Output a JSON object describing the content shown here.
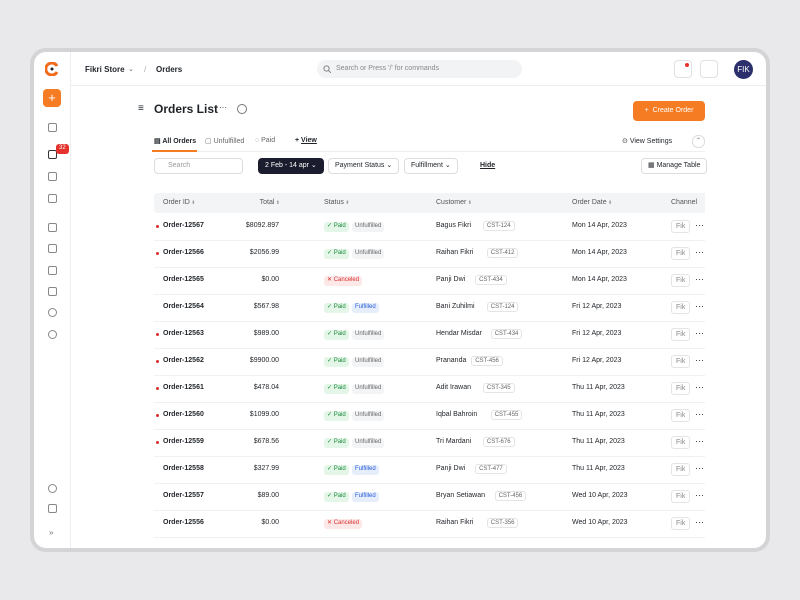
{
  "header": {
    "store": "Fikri Store",
    "breadcrumb": "Orders",
    "search_placeholder": "Search or Press '/' for commands",
    "avatar": "FIK"
  },
  "sidebar": {
    "badge": "32"
  },
  "page": {
    "title": "Orders List",
    "create_button": "Create Order"
  },
  "tabs": {
    "items": [
      "All Orders",
      "Unfulfilled",
      "Paid"
    ],
    "add_view": "View",
    "view_settings": "View Settings"
  },
  "filters": {
    "search": "Search",
    "date_range": "2 Feb - 14 apr",
    "payment_status": "Payment Status",
    "fulfillment": "Fulfillment",
    "hide": "Hide",
    "manage_table": "Manage Table"
  },
  "table": {
    "columns": [
      "Order ID",
      "Total",
      "Status",
      "Customer",
      "Order Date",
      "Channel"
    ],
    "rows": [
      {
        "id": "Order-12567",
        "total": "$8092.897",
        "payment": "Paid",
        "fulfillment": "Unfulfilled",
        "customer": "Bagus Fikri",
        "customer_id": "CST-124",
        "date": "Mon 14 Apr, 2023",
        "channel": "Fik",
        "unread": true
      },
      {
        "id": "Order-12566",
        "total": "$2056.99",
        "payment": "Paid",
        "fulfillment": "Unfulfilled",
        "customer": "Raihan Fikri",
        "customer_id": "CST-412",
        "date": "Mon 14 Apr, 2023",
        "channel": "Fik",
        "unread": true
      },
      {
        "id": "Order-12565",
        "total": "$0.00",
        "payment": "Canceled",
        "customer": "Panji Dwi",
        "customer_id": "CST-434",
        "date": "Mon 14 Apr, 2023",
        "channel": "Fik",
        "unread": false
      },
      {
        "id": "Order-12564",
        "total": "$567.98",
        "payment": "Paid",
        "fulfillment": "Fulfilled",
        "customer": "Bani Zuhilmi",
        "customer_id": "CST-124",
        "date": "Fri 12 Apr, 2023",
        "channel": "Fik",
        "unread": false
      },
      {
        "id": "Order-12563",
        "total": "$989.00",
        "payment": "Paid",
        "fulfillment": "Unfulfilled",
        "customer": "Hendar Misdar",
        "customer_id": "CST-434",
        "date": "Fri 12 Apr, 2023",
        "channel": "Fik",
        "unread": true
      },
      {
        "id": "Order-12562",
        "total": "$9900.00",
        "payment": "Paid",
        "fulfillment": "Unfulfilled",
        "customer": "Prananda",
        "customer_id": "CST-456",
        "date": "Fri 12 Apr, 2023",
        "channel": "Fik",
        "unread": true
      },
      {
        "id": "Order-12561",
        "total": "$478.04",
        "payment": "Paid",
        "fulfillment": "Unfulfilled",
        "customer": "Adit Irawan",
        "customer_id": "CST-345",
        "date": "Thu 11 Apr, 2023",
        "channel": "Fik",
        "unread": true
      },
      {
        "id": "Order-12560",
        "total": "$1099.00",
        "payment": "Paid",
        "fulfillment": "Unfulfilled",
        "customer": "Iqbal Bahroin",
        "customer_id": "CST-455",
        "date": "Thu 11 Apr, 2023",
        "channel": "Fik",
        "unread": true
      },
      {
        "id": "Order-12559",
        "total": "$678.56",
        "payment": "Paid",
        "fulfillment": "Unfulfilled",
        "customer": "Tri Mardani",
        "customer_id": "CST-676",
        "date": "Thu 11 Apr, 2023",
        "channel": "Fik",
        "unread": true
      },
      {
        "id": "Order-12558",
        "total": "$327.99",
        "payment": "Paid",
        "fulfillment": "Fulfilled",
        "customer": "Panji Dwi",
        "customer_id": "CST-477",
        "date": "Thu 11 Apr, 2023",
        "channel": "Fik",
        "unread": false
      },
      {
        "id": "Order-12557",
        "total": "$89.00",
        "payment": "Paid",
        "fulfillment": "Fulfilled",
        "customer": "Bryan Setiawan",
        "customer_id": "CST-456",
        "date": "Wed 10 Apr, 2023",
        "channel": "Fik",
        "unread": false
      },
      {
        "id": "Order-12556",
        "total": "$0.00",
        "payment": "Canceled",
        "customer": "Raihan Fikri",
        "customer_id": "CST-356",
        "date": "Wed 10 Apr, 2023",
        "channel": "Fik",
        "unread": false
      }
    ]
  }
}
